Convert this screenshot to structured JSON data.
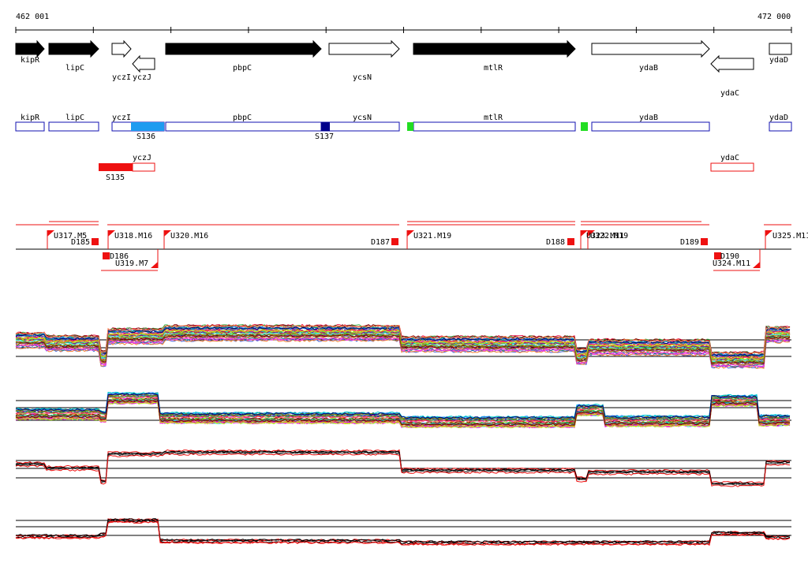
{
  "ruler": {
    "start_label": "462 001",
    "end_label": "472 000"
  },
  "colors": {
    "gene_fill": "#000000",
    "gene_outline": "#000000",
    "annot_outline": "#1010b0",
    "seg_cyan": "#1e9bf0",
    "seg_navy": "#00008b",
    "seg_green": "#22dd22",
    "antisense_red": "#ee1111",
    "series_a": "#000000",
    "series_b": "#ee1111",
    "series_grey": "#7a7a7a"
  },
  "genes": [
    {
      "name": "kipR",
      "strand": "+",
      "filled": true
    },
    {
      "name": "lipC",
      "strand": "+",
      "filled": true
    },
    {
      "name": "yczI",
      "strand": "+",
      "filled": false
    },
    {
      "name": "yczJ",
      "strand": "-",
      "filled": false
    },
    {
      "name": "pbpC",
      "strand": "+",
      "filled": true
    },
    {
      "name": "ycsN",
      "strand": "+",
      "filled": false
    },
    {
      "name": "mtlR",
      "strand": "+",
      "filled": true
    },
    {
      "name": "ydaB",
      "strand": "+",
      "filled": false
    },
    {
      "name": "ydaC",
      "strand": "-",
      "filled": false
    },
    {
      "name": "ydaD",
      "strand": "+",
      "filled": false
    }
  ],
  "sense_annotations": [
    {
      "name": "kipR"
    },
    {
      "name": "lipC"
    },
    {
      "name": "yczI"
    },
    {
      "name": "pbpC"
    },
    {
      "name": "ycsN"
    },
    {
      "name": "mtlR"
    },
    {
      "name": "ydaB"
    },
    {
      "name": "ydaD"
    }
  ],
  "sense_segments": [
    {
      "label": "S136",
      "color": "cyan"
    },
    {
      "label": "S137",
      "color": "navy"
    },
    {
      "label": "",
      "color": "green"
    },
    {
      "label": "",
      "color": "green"
    }
  ],
  "antisense_annotations": [
    {
      "name": "yczJ"
    },
    {
      "name": "ydaC"
    }
  ],
  "antisense_segments": [
    {
      "label": "S135"
    }
  ],
  "upshifts_top": [
    {
      "label": "U317.M5"
    },
    {
      "label": "U318.M16"
    },
    {
      "label": "U320.M16"
    },
    {
      "label": "U321.M19"
    },
    {
      "label": "U322.M19"
    },
    {
      "label": "U323.M11"
    },
    {
      "label": "U325.M11"
    }
  ],
  "upshifts_bottom": [
    {
      "label": "U319.M7"
    },
    {
      "label": "U324.M11"
    }
  ],
  "downshifts": [
    {
      "label": "D185"
    },
    {
      "label": "D186"
    },
    {
      "label": "D187"
    },
    {
      "label": "D188"
    },
    {
      "label": "D189"
    },
    {
      "label": "D190"
    }
  ]
}
